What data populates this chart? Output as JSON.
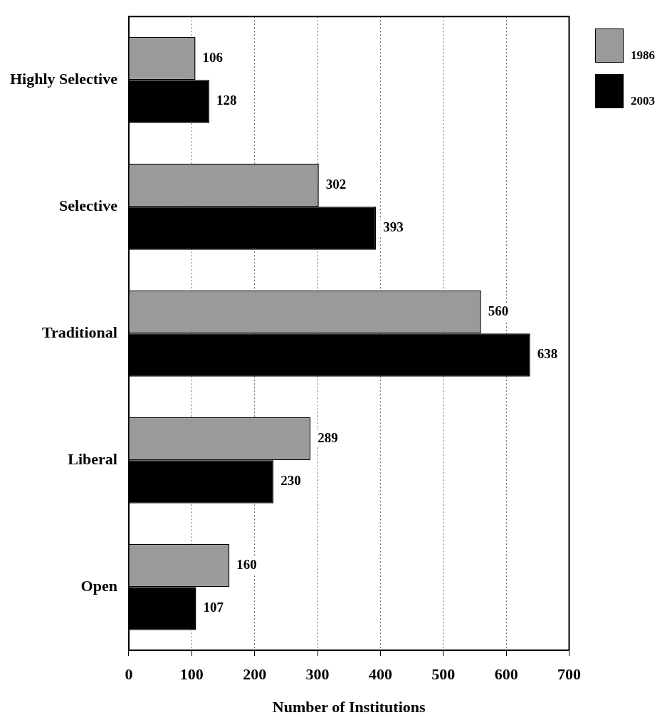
{
  "chart_data": {
    "type": "bar",
    "orientation": "horizontal",
    "xlabel": "Number of Institutions",
    "categories": [
      "Highly Selective",
      "Selective",
      "Traditional",
      "Liberal",
      "Open"
    ],
    "series": [
      {
        "name": "1986",
        "color": "#9a9a9a",
        "values": [
          106,
          302,
          560,
          289,
          160
        ]
      },
      {
        "name": "2003",
        "color": "#000000",
        "values": [
          128,
          393,
          638,
          230,
          107
        ]
      }
    ],
    "xlim": [
      0,
      700
    ],
    "xticks": [
      0,
      100,
      200,
      300,
      400,
      500,
      600,
      700
    ],
    "grid": "x",
    "legend": "top right",
    "data_labels": true
  }
}
